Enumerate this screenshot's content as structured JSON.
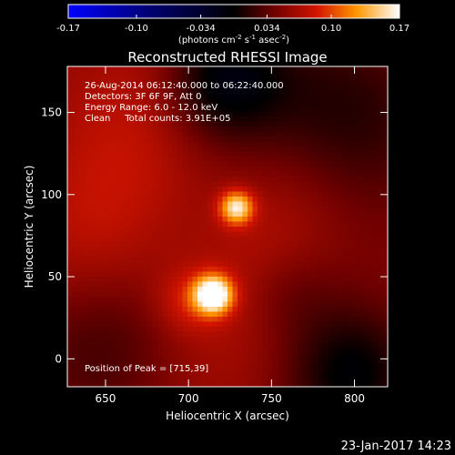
{
  "chart_data": {
    "type": "heatmap",
    "title": "Reconstructed RHESSI Image",
    "xlabel": "Heliocentric X (arcsec)",
    "ylabel": "Heliocentric Y (arcsec)",
    "xlim": [
      627,
      820
    ],
    "ylim": [
      -17,
      178
    ],
    "x_ticks": [
      650,
      700,
      750,
      800
    ],
    "y_ticks": [
      0,
      50,
      100,
      150
    ],
    "colorbar": {
      "min": -0.17,
      "max": 0.17,
      "ticks": [
        "-0.17",
        "-0.10",
        "-0.034",
        "0.034",
        "0.10",
        "0.17"
      ],
      "tick_values": [
        -0.17,
        -0.1,
        -0.034,
        0.034,
        0.1,
        0.17
      ],
      "label_main": "(photons cm",
      "label_exp1": "-2",
      "label_mid": " s",
      "label_exp2": "-1",
      "label_end": " asec",
      "label_exp3": "-2",
      "label_close": ")"
    },
    "annotations": [
      "26-Aug-2014 06:12:40.000 to 06:22:40.000",
      "Detectors: 3F 6F 9F, Att 0",
      "Energy Range: 6.0 - 12.0 keV",
      "Clean     Total counts: 3.91E+05"
    ],
    "peak_label": "Position of Peak = [715,39]",
    "sources": [
      {
        "x": 715,
        "y": 39,
        "peak": 0.17
      },
      {
        "x": 729,
        "y": 92,
        "peak": 0.135
      }
    ]
  },
  "footer": {
    "date": "23-Jan-2017 14:23"
  },
  "colors": {
    "background": "#000000",
    "axis": "#ffffff"
  }
}
